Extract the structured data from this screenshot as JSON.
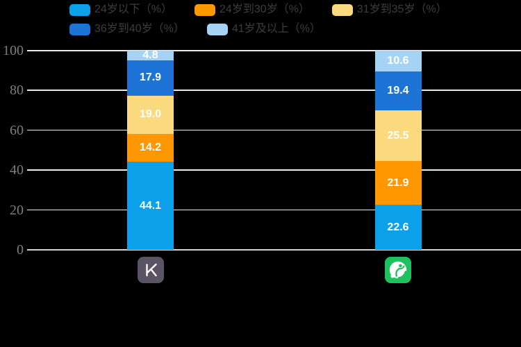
{
  "chart_data": {
    "type": "bar",
    "stacked": true,
    "title": "",
    "categories": [
      "keep-app",
      "codoon-app"
    ],
    "series": [
      {
        "name": "24岁以下（%）",
        "color": "#0AA0EA",
        "values": [
          44.1,
          22.6
        ]
      },
      {
        "name": "24岁到30岁（%）",
        "color": "#FF9800",
        "values": [
          14.2,
          21.9
        ]
      },
      {
        "name": "31岁到35岁（%）",
        "color": "#FBD97F",
        "values": [
          19.0,
          25.5
        ]
      },
      {
        "name": "36岁到40岁（%）",
        "color": "#1E74D6",
        "values": [
          17.9,
          19.4
        ]
      },
      {
        "name": "41岁及以上（%）",
        "color": "#A6D3F4",
        "values": [
          4.8,
          10.6
        ]
      }
    ],
    "legend_rows": [
      [
        0,
        1,
        2
      ],
      [
        3,
        4
      ]
    ],
    "legend_position": "top-left",
    "y_ticks": [
      0,
      20,
      40,
      60,
      80,
      100
    ],
    "ylim": [
      0,
      100
    ],
    "grid": true,
    "background_color": "#000000",
    "gridline_color": "#ECECEC",
    "axis_line_color": "#D5D5D5",
    "value_label_color": "#FFFFFF",
    "axis_tick_color": "#7E7E7E",
    "legend_text_color": "#3D3D3D"
  },
  "category_icons": [
    {
      "name": "keep-app-icon",
      "bg": "#5A5465",
      "glyph_color": "#FFFFFF"
    },
    {
      "name": "codoon-app-icon",
      "bg": "#1FC15F",
      "glyph_color": "#FFFFFF"
    }
  ]
}
